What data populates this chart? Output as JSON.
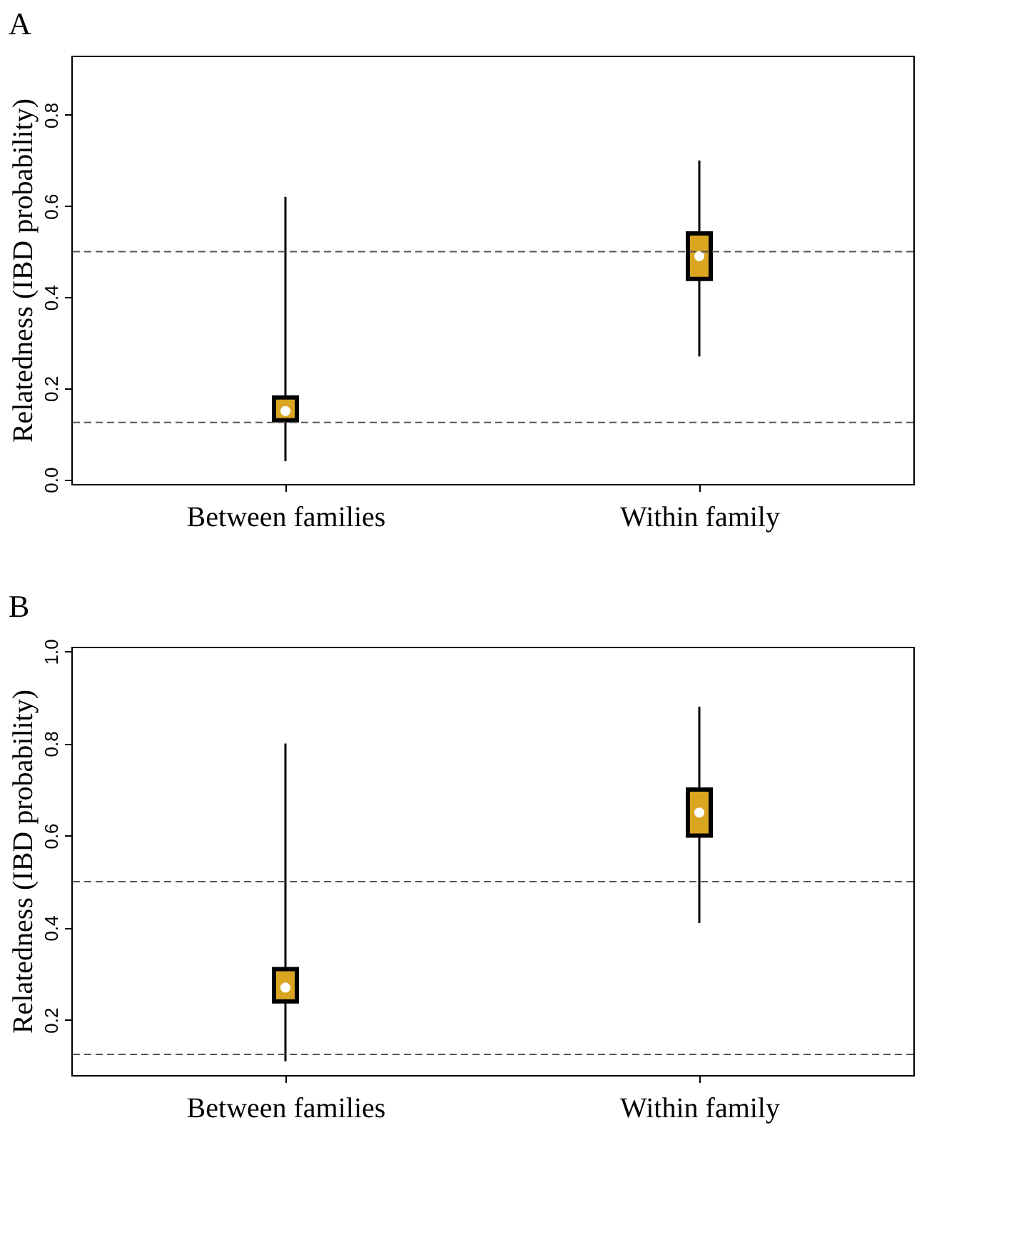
{
  "chart_data": [
    {
      "type": "box",
      "title": "A",
      "ylabel": "Relatedness (IBD probability)",
      "categories": [
        "Between families",
        "Within family"
      ],
      "color": "#daa520",
      "boxes": [
        {
          "low": 0.04,
          "q1": 0.13,
          "median": 0.15,
          "q3": 0.18,
          "high": 0.62
        },
        {
          "low": 0.27,
          "q1": 0.44,
          "median": 0.49,
          "q3": 0.54,
          "high": 0.7
        }
      ],
      "ylim": [
        -0.01,
        0.93
      ],
      "yticks": [
        {
          "value": 0,
          "label": "0.0"
        },
        0.2,
        0.4,
        0.6,
        0.8
      ],
      "grid": false,
      "ref_lines": [
        {
          "axis": "y",
          "value": 0.5,
          "line_style": "dashed"
        },
        {
          "axis": "y",
          "value": 0.125,
          "line_style": "dashed"
        }
      ]
    },
    {
      "type": "box",
      "title": "B",
      "ylabel": "Relatedness (IBD probability)",
      "categories": [
        "Between families",
        "Within family"
      ],
      "color": "#daa520",
      "boxes": [
        {
          "low": 0.11,
          "q1": 0.24,
          "median": 0.27,
          "q3": 0.31,
          "high": 0.8
        },
        {
          "low": 0.41,
          "q1": 0.6,
          "median": 0.65,
          "q3": 0.7,
          "high": 0.88
        }
      ],
      "ylim": [
        0.08,
        1.01
      ],
      "yticks": [
        0.2,
        0.4,
        0.6,
        0.8,
        {
          "value": 1,
          "label": "1.0"
        }
      ],
      "grid": false,
      "ref_lines": [
        {
          "axis": "y",
          "value": 0.5,
          "line_style": "dashed"
        },
        {
          "axis": "y",
          "value": 0.125,
          "line_style": "dashed"
        }
      ]
    }
  ]
}
